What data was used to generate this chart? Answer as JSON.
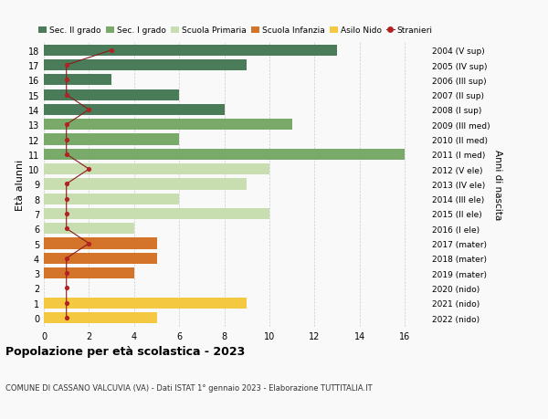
{
  "ages": [
    18,
    17,
    16,
    15,
    14,
    13,
    12,
    11,
    10,
    9,
    8,
    7,
    6,
    5,
    4,
    3,
    2,
    1,
    0
  ],
  "years": [
    "2004 (V sup)",
    "2005 (IV sup)",
    "2006 (III sup)",
    "2007 (II sup)",
    "2008 (I sup)",
    "2009 (III med)",
    "2010 (II med)",
    "2011 (I med)",
    "2012 (V ele)",
    "2013 (IV ele)",
    "2014 (III ele)",
    "2015 (II ele)",
    "2016 (I ele)",
    "2017 (mater)",
    "2018 (mater)",
    "2019 (mater)",
    "2020 (nido)",
    "2021 (nido)",
    "2022 (nido)"
  ],
  "bar_values": [
    13,
    9,
    3,
    6,
    8,
    11,
    6,
    16,
    10,
    9,
    6,
    10,
    4,
    5,
    5,
    4,
    0,
    9,
    5
  ],
  "bar_colors": [
    "#4a7c59",
    "#4a7c59",
    "#4a7c59",
    "#4a7c59",
    "#4a7c59",
    "#7aaa6a",
    "#7aaa6a",
    "#7aaa6a",
    "#c8ddb0",
    "#c8ddb0",
    "#c8ddb0",
    "#c8ddb0",
    "#c8ddb0",
    "#d4732a",
    "#d4732a",
    "#d4732a",
    "#f5c842",
    "#f5c842",
    "#f5c842"
  ],
  "stranieri_values": [
    3,
    1,
    1,
    1,
    2,
    1,
    1,
    1,
    2,
    1,
    1,
    1,
    1,
    2,
    1,
    1,
    1,
    1,
    1
  ],
  "stranieri_ages": [
    18,
    17,
    16,
    15,
    14,
    13,
    12,
    11,
    10,
    9,
    8,
    7,
    6,
    5,
    4,
    3,
    2,
    1,
    0
  ],
  "title": "Popolazione per età scolastica - 2023",
  "subtitle": "COMUNE DI CASSANO VALCUVIA (VA) - Dati ISTAT 1° gennaio 2023 - Elaborazione TUTTITALIA.IT",
  "ylabel": "Età alunni",
  "right_label": "Anni di nascita",
  "xlim": [
    0,
    17
  ],
  "xticks": [
    0,
    2,
    4,
    6,
    8,
    10,
    12,
    14,
    16
  ],
  "legend_labels": [
    "Sec. II grado",
    "Sec. I grado",
    "Scuola Primaria",
    "Scuola Infanzia",
    "Asilo Nido",
    "Stranieri"
  ],
  "legend_colors": [
    "#4a7c59",
    "#7aaa6a",
    "#c8ddb0",
    "#d4732a",
    "#f5c842",
    "#b22222"
  ],
  "bar_height": 0.75,
  "bg_color": "#f9f9f9",
  "grid_color": "#cccccc"
}
